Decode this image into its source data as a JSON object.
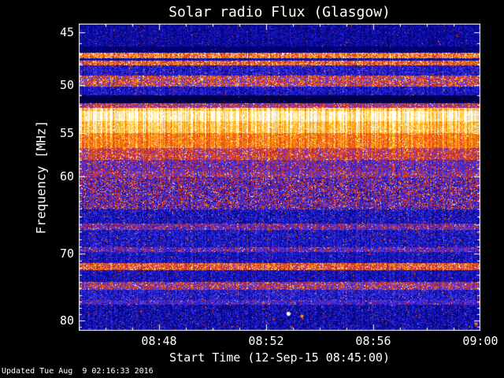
{
  "window": {
    "background": "#000000",
    "foreground": "#ffffff"
  },
  "chart_data": {
    "type": "heatmap",
    "subtype": "radio-spectrogram",
    "title": "Solar radio Flux (Glasgow)",
    "xlabel": "Start Time (12-Sep-15 08:45:00)",
    "ylabel": "Frequency [MHz]",
    "x_start_time": "08:45:00",
    "x_end_time": "09:00:00",
    "x_range_seconds": [
      0,
      900
    ],
    "x_ticks": [
      {
        "label": "08:48",
        "t": 180
      },
      {
        "label": "08:52",
        "t": 420
      },
      {
        "label": "08:56",
        "t": 660
      },
      {
        "label": "09:00",
        "t": 900
      }
    ],
    "x_minor_tick_seconds": 60,
    "y_scale": "log",
    "freq_range_mhz": [
      44.2,
      81.5
    ],
    "y_ticks": [
      {
        "label": "45",
        "f": 45
      },
      {
        "label": "50",
        "f": 50
      },
      {
        "label": "55",
        "f": 55
      },
      {
        "label": "60",
        "f": 60
      },
      {
        "label": "70",
        "f": 70
      },
      {
        "label": "80",
        "f": 80
      }
    ],
    "colormap": [
      [
        0.0,
        [
          0,
          0,
          25
        ]
      ],
      [
        0.16,
        [
          0,
          0,
          120
        ]
      ],
      [
        0.32,
        [
          30,
          30,
          220
        ]
      ],
      [
        0.42,
        [
          70,
          70,
          255
        ]
      ],
      [
        0.5,
        [
          130,
          30,
          170
        ]
      ],
      [
        0.57,
        [
          200,
          40,
          40
        ]
      ],
      [
        0.68,
        [
          235,
          80,
          20
        ]
      ],
      [
        0.8,
        [
          255,
          140,
          0
        ]
      ],
      [
        0.9,
        [
          255,
          210,
          50
        ]
      ],
      [
        1.0,
        [
          255,
          255,
          255
        ]
      ]
    ],
    "bands": [
      {
        "f1": 44.2,
        "f2": 46.2,
        "base": 0.22,
        "noise": 0.1,
        "speckle": 0.02
      },
      {
        "f1": 46.2,
        "f2": 46.8,
        "base": 0.15,
        "noise": 0.06,
        "speckle": 0.01
      },
      {
        "f1": 46.8,
        "f2": 47.3,
        "base": 0.72,
        "noise": 0.18,
        "speckle": 0.15
      },
      {
        "f1": 47.3,
        "f2": 47.55,
        "base": 0.22,
        "noise": 0.08,
        "speckle": 0.03
      },
      {
        "f1": 47.55,
        "f2": 48.0,
        "base": 0.68,
        "noise": 0.18,
        "speckle": 0.12
      },
      {
        "f1": 48.0,
        "f2": 49.0,
        "base": 0.3,
        "noise": 0.14,
        "speckle": 0.05
      },
      {
        "f1": 49.0,
        "f2": 50.1,
        "base": 0.58,
        "noise": 0.22,
        "speckle": 0.12
      },
      {
        "f1": 50.1,
        "f2": 51.0,
        "base": 0.28,
        "noise": 0.12,
        "speckle": 0.03
      },
      {
        "f1": 51.0,
        "f2": 51.8,
        "base": 0.08,
        "noise": 0.05,
        "speckle": 0.01
      },
      {
        "f1": 51.8,
        "f2": 52.3,
        "base": 0.55,
        "noise": 0.15,
        "speckle": 0.08
      },
      {
        "f1": 52.3,
        "f2": 52.6,
        "base": 0.88,
        "noise": 0.08,
        "speckle": 0.1
      },
      {
        "f1": 52.6,
        "f2": 53.7,
        "base": 0.97,
        "noise": 0.05,
        "speckle": 0.1
      },
      {
        "f1": 53.7,
        "f2": 55.0,
        "base": 0.88,
        "noise": 0.07,
        "speckle": 0.08
      },
      {
        "f1": 55.0,
        "f2": 56.6,
        "base": 0.76,
        "noise": 0.1,
        "speckle": 0.06
      },
      {
        "f1": 56.6,
        "f2": 58.0,
        "base": 0.6,
        "noise": 0.16,
        "speckle": 0.08
      },
      {
        "f1": 58.0,
        "f2": 59.4,
        "base": 0.45,
        "noise": 0.2,
        "speckle": 0.06
      },
      {
        "f1": 59.4,
        "f2": 60.0,
        "base": 0.5,
        "noise": 0.2,
        "speckle": 0.08
      },
      {
        "f1": 60.0,
        "f2": 64.0,
        "base": 0.42,
        "noise": 0.26,
        "speckle": 0.1
      },
      {
        "f1": 64.0,
        "f2": 65.9,
        "base": 0.27,
        "noise": 0.14,
        "speckle": 0.05
      },
      {
        "f1": 65.9,
        "f2": 66.7,
        "base": 0.45,
        "noise": 0.2,
        "speckle": 0.08
      },
      {
        "f1": 66.7,
        "f2": 69.0,
        "base": 0.28,
        "noise": 0.13,
        "speckle": 0.05
      },
      {
        "f1": 69.0,
        "f2": 69.7,
        "base": 0.42,
        "noise": 0.18,
        "speckle": 0.08
      },
      {
        "f1": 69.7,
        "f2": 71.2,
        "base": 0.27,
        "noise": 0.12,
        "speckle": 0.04
      },
      {
        "f1": 71.2,
        "f2": 72.3,
        "base": 0.66,
        "noise": 0.16,
        "speckle": 0.12
      },
      {
        "f1": 72.3,
        "f2": 74.0,
        "base": 0.26,
        "noise": 0.11,
        "speckle": 0.04
      },
      {
        "f1": 74.0,
        "f2": 75.2,
        "base": 0.52,
        "noise": 0.2,
        "speckle": 0.1
      },
      {
        "f1": 75.2,
        "f2": 76.7,
        "base": 0.3,
        "noise": 0.14,
        "speckle": 0.05
      },
      {
        "f1": 76.7,
        "f2": 77.4,
        "base": 0.38,
        "noise": 0.16,
        "speckle": 0.06
      },
      {
        "f1": 77.4,
        "f2": 81.5,
        "base": 0.24,
        "noise": 0.14,
        "speckle": 0.03
      }
    ],
    "events": [
      {
        "t": 276,
        "f": 49.4,
        "amp": 0.92,
        "r": 2
      },
      {
        "t": 858,
        "f": 49.5,
        "amp": 0.85,
        "r": 2
      },
      {
        "t": 102,
        "f": 56.7,
        "amp": 0.85,
        "r": 2
      },
      {
        "t": 700,
        "f": 56.6,
        "amp": 0.88,
        "r": 2
      },
      {
        "t": 470,
        "f": 78.9,
        "amp": 1.0,
        "r": 2.5
      },
      {
        "t": 500,
        "f": 79.3,
        "amp": 0.8,
        "r": 2
      },
      {
        "t": 140,
        "f": 78.5,
        "amp": 0.6,
        "r": 1.5
      },
      {
        "t": 437,
        "f": 79.8,
        "amp": 0.6,
        "r": 1.5
      },
      {
        "t": 890,
        "f": 80.5,
        "amp": 0.75,
        "r": 2
      }
    ],
    "noise_seed": 1234,
    "column_striation": 0.13,
    "frame_color": "#ffffff"
  },
  "footer": {
    "updated": "Updated Tue Aug  9 02:16:33 2016"
  }
}
